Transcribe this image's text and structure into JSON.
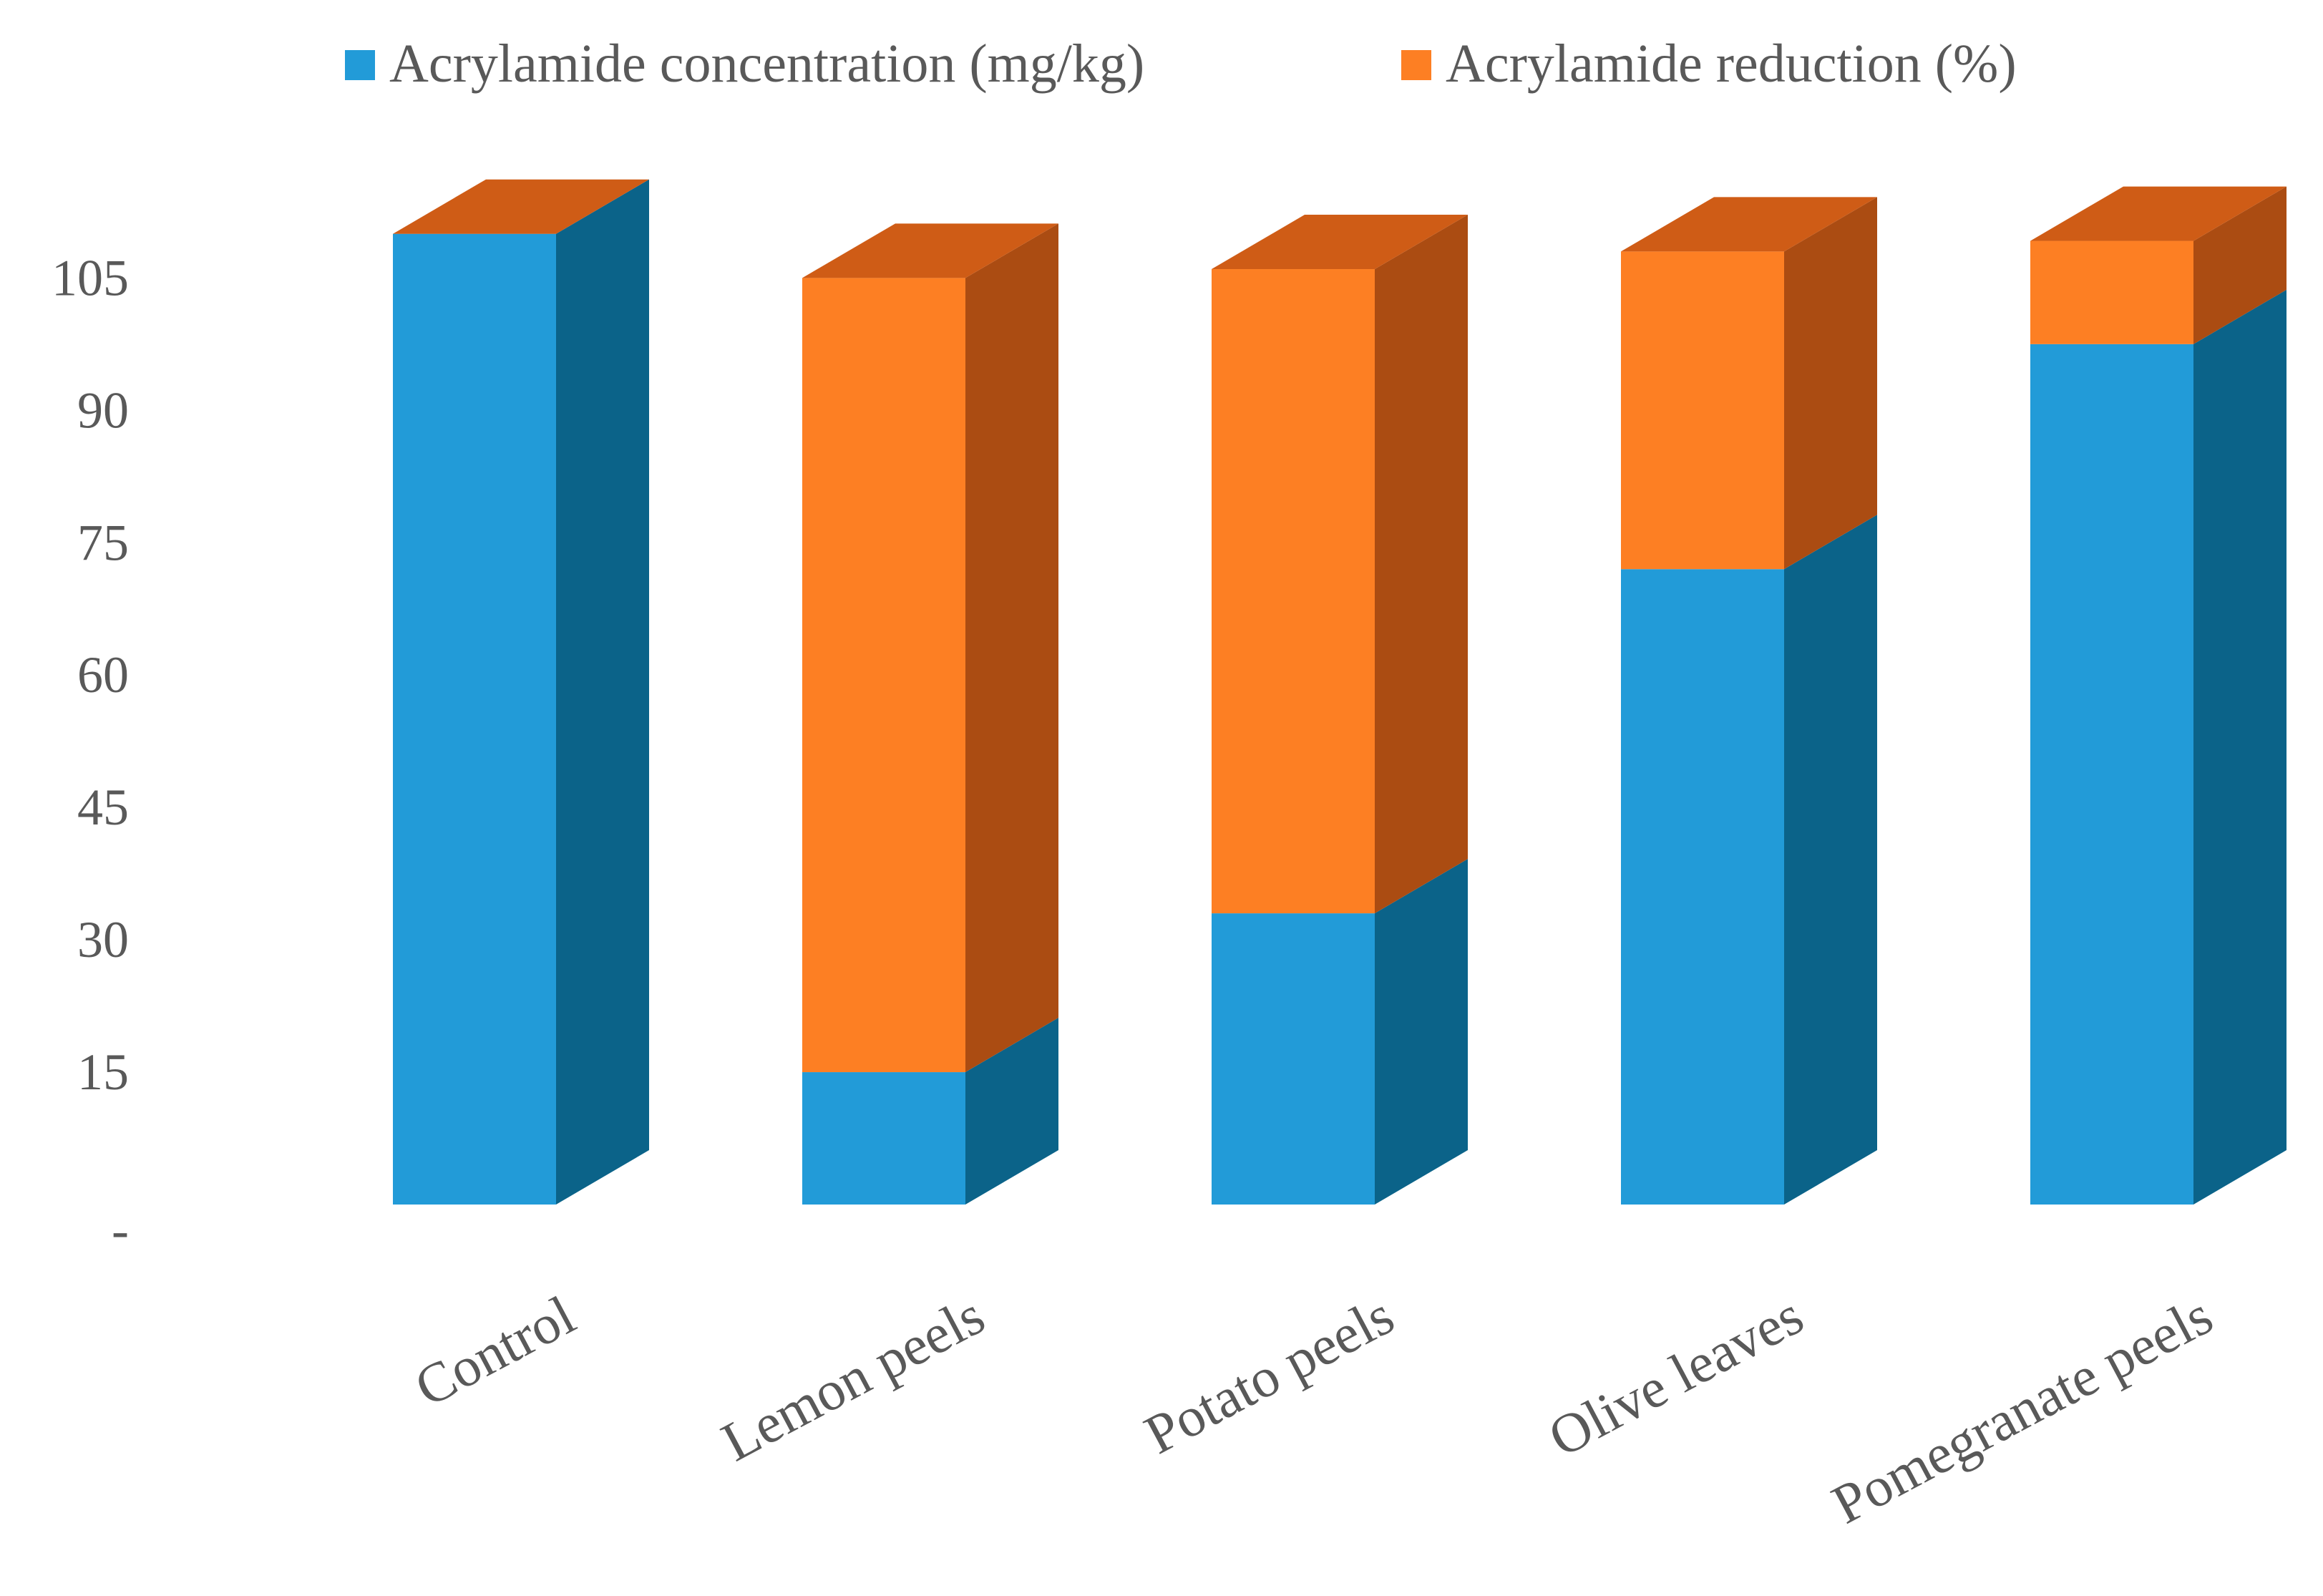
{
  "chart_data": {
    "type": "bar",
    "stacked": true,
    "style": "3d-columns",
    "categories": [
      "Control",
      "Lemon peels",
      "Potato peels",
      "Olive leaves",
      "Pomegranate peels"
    ],
    "series": [
      {
        "name": "Acrylamide concentration (mg/kg)",
        "values": [
          110,
          15,
          33,
          72,
          97.5
        ],
        "color": "#229bd8",
        "side_color": "#0b6389"
      },
      {
        "name": "Acrylamide reduction (%)",
        "values": [
          0,
          90,
          73,
          36,
          11.7
        ],
        "color": "#fd7f23",
        "side_color": "#ab4c12",
        "top_color": "#cf5c16"
      }
    ],
    "yticks": [
      {
        "value": 0,
        "label": "-"
      },
      {
        "value": 15,
        "label": "15"
      },
      {
        "value": 30,
        "label": "30"
      },
      {
        "value": 45,
        "label": "45"
      },
      {
        "value": 60,
        "label": "60"
      },
      {
        "value": 75,
        "label": "75"
      },
      {
        "value": 90,
        "label": "90"
      },
      {
        "value": 105,
        "label": "105"
      }
    ],
    "ylim": [
      0,
      115
    ],
    "title": "",
    "xlabel": "",
    "ylabel": "",
    "legend_position": "top",
    "grid": false
  }
}
